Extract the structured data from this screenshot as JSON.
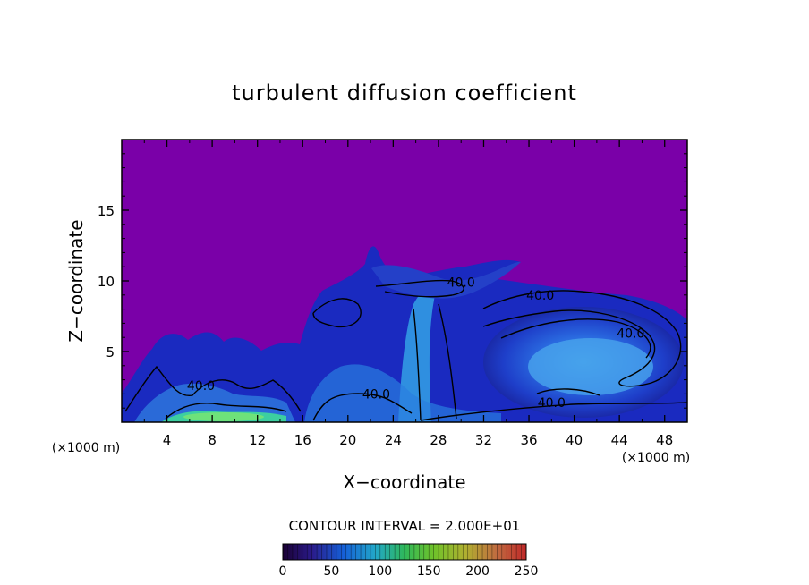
{
  "chart_data": {
    "type": "heatmap",
    "title": "turbulent diffusion coefficient",
    "xlabel": "X−coordinate",
    "ylabel": "Z−coordinate",
    "x_unit": "(×1000 m)",
    "x_ticks": [
      4,
      8,
      12,
      16,
      20,
      24,
      28,
      32,
      36,
      40,
      44,
      48
    ],
    "y_ticks": [
      5,
      10,
      15
    ],
    "xlim": [
      0,
      50
    ],
    "ylim": [
      0,
      20
    ],
    "contour_interval_text": "CONTOUR INTERVAL = 2.000E+01",
    "contour_labels": [
      {
        "text": "40.0",
        "x": 30.0,
        "y": 9.9
      },
      {
        "text": "40.0",
        "x": 37.0,
        "y": 9.0
      },
      {
        "text": "40.0",
        "x": 45.0,
        "y": 6.3
      },
      {
        "text": "40.0",
        "x": 22.5,
        "y": 2.0
      },
      {
        "text": "40.0",
        "x": 38.0,
        "y": 1.4
      },
      {
        "text": "40.0",
        "x": 7.0,
        "y": 2.6
      }
    ],
    "colorbar": {
      "ticks": [
        "0",
        "50",
        "100",
        "150",
        "200",
        "250"
      ],
      "range": [
        0,
        250
      ]
    },
    "background_color": "#7a00a8"
  }
}
